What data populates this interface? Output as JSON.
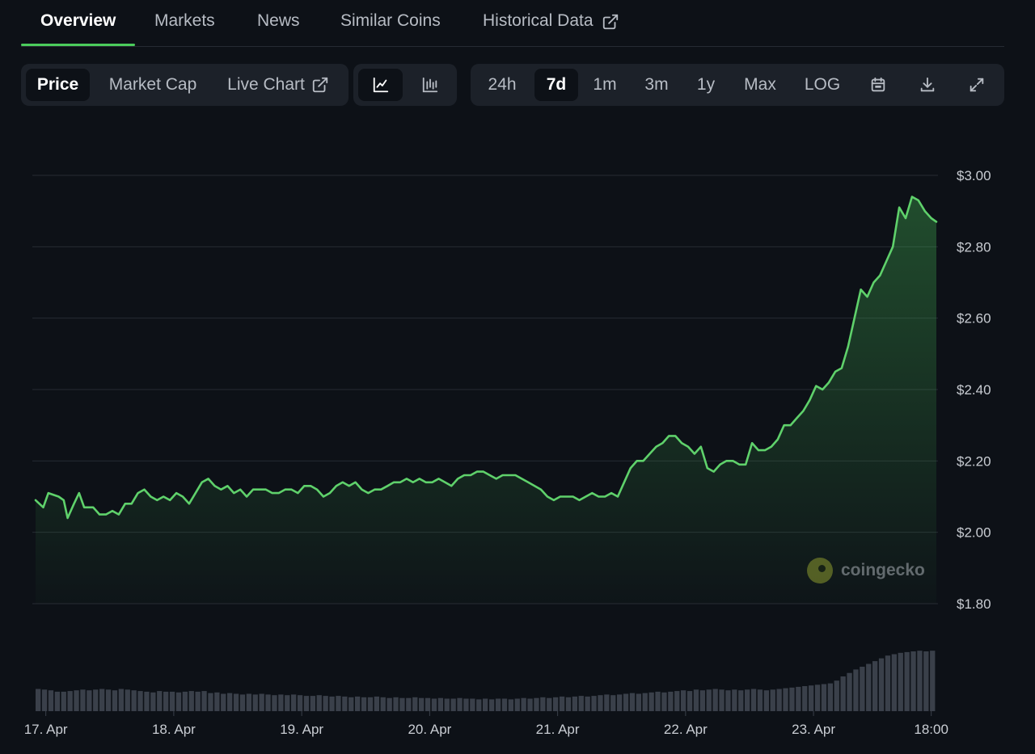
{
  "nav": {
    "tabs": [
      {
        "label": "Overview"
      },
      {
        "label": "Markets"
      },
      {
        "label": "News"
      },
      {
        "label": "Similar Coins"
      },
      {
        "label": "Historical Data"
      }
    ]
  },
  "toolbar": {
    "metrics": [
      {
        "label": "Price"
      },
      {
        "label": "Market Cap"
      },
      {
        "label": "Live Chart"
      }
    ],
    "chart_types": [
      {
        "icon": "line-chart-icon"
      },
      {
        "icon": "candlestick-chart-icon"
      }
    ],
    "ranges": [
      {
        "label": "24h"
      },
      {
        "label": "7d"
      },
      {
        "label": "1m"
      },
      {
        "label": "3m"
      },
      {
        "label": "1y"
      },
      {
        "label": "Max"
      },
      {
        "label": "LOG"
      }
    ],
    "actions": [
      {
        "icon": "calendar-icon"
      },
      {
        "icon": "download-icon"
      },
      {
        "icon": "fullscreen-icon"
      }
    ]
  },
  "watermark": {
    "text": "coingecko"
  },
  "colors": {
    "accent": "#4bcc5c",
    "line": "#5fd16b",
    "background": "#0d1117",
    "volume_bar": "#3a404a"
  },
  "chart_data": {
    "type": "area",
    "ylim": [
      1.8,
      3.0
    ],
    "y_ticks": [
      "$3.00",
      "$2.80",
      "$2.60",
      "$2.40",
      "$2.20",
      "$2.00",
      "$1.80"
    ],
    "x_ticks": [
      "17. Apr",
      "18. Apr",
      "19. Apr",
      "20. Apr",
      "21. Apr",
      "22. Apr",
      "23. Apr",
      "18:00"
    ],
    "x_range": [
      0,
      7.04
    ],
    "x_tick_positions": [
      0.08,
      1.08,
      2.08,
      3.08,
      4.08,
      5.08,
      6.08,
      7.0
    ],
    "price": [
      [
        0.0,
        2.09
      ],
      [
        0.06,
        2.07
      ],
      [
        0.1,
        2.11
      ],
      [
        0.18,
        2.1
      ],
      [
        0.22,
        2.09
      ],
      [
        0.25,
        2.04
      ],
      [
        0.3,
        2.08
      ],
      [
        0.34,
        2.11
      ],
      [
        0.38,
        2.07
      ],
      [
        0.45,
        2.07
      ],
      [
        0.5,
        2.05
      ],
      [
        0.55,
        2.05
      ],
      [
        0.6,
        2.06
      ],
      [
        0.65,
        2.05
      ],
      [
        0.7,
        2.08
      ],
      [
        0.75,
        2.08
      ],
      [
        0.8,
        2.11
      ],
      [
        0.85,
        2.12
      ],
      [
        0.9,
        2.1
      ],
      [
        0.95,
        2.09
      ],
      [
        1.0,
        2.1
      ],
      [
        1.05,
        2.09
      ],
      [
        1.1,
        2.11
      ],
      [
        1.15,
        2.1
      ],
      [
        1.2,
        2.08
      ],
      [
        1.25,
        2.11
      ],
      [
        1.3,
        2.14
      ],
      [
        1.35,
        2.15
      ],
      [
        1.4,
        2.13
      ],
      [
        1.45,
        2.12
      ],
      [
        1.5,
        2.13
      ],
      [
        1.55,
        2.11
      ],
      [
        1.6,
        2.12
      ],
      [
        1.65,
        2.1
      ],
      [
        1.7,
        2.12
      ],
      [
        1.75,
        2.12
      ],
      [
        1.8,
        2.12
      ],
      [
        1.85,
        2.11
      ],
      [
        1.9,
        2.11
      ],
      [
        1.95,
        2.12
      ],
      [
        2.0,
        2.12
      ],
      [
        2.05,
        2.11
      ],
      [
        2.1,
        2.13
      ],
      [
        2.15,
        2.13
      ],
      [
        2.2,
        2.12
      ],
      [
        2.25,
        2.1
      ],
      [
        2.3,
        2.11
      ],
      [
        2.35,
        2.13
      ],
      [
        2.4,
        2.14
      ],
      [
        2.45,
        2.13
      ],
      [
        2.5,
        2.14
      ],
      [
        2.55,
        2.12
      ],
      [
        2.6,
        2.11
      ],
      [
        2.65,
        2.12
      ],
      [
        2.7,
        2.12
      ],
      [
        2.75,
        2.13
      ],
      [
        2.8,
        2.14
      ],
      [
        2.85,
        2.14
      ],
      [
        2.9,
        2.15
      ],
      [
        2.95,
        2.14
      ],
      [
        3.0,
        2.15
      ],
      [
        3.05,
        2.14
      ],
      [
        3.1,
        2.14
      ],
      [
        3.15,
        2.15
      ],
      [
        3.2,
        2.14
      ],
      [
        3.25,
        2.13
      ],
      [
        3.3,
        2.15
      ],
      [
        3.35,
        2.16
      ],
      [
        3.4,
        2.16
      ],
      [
        3.45,
        2.17
      ],
      [
        3.5,
        2.17
      ],
      [
        3.55,
        2.16
      ],
      [
        3.6,
        2.15
      ],
      [
        3.65,
        2.16
      ],
      [
        3.7,
        2.16
      ],
      [
        3.75,
        2.16
      ],
      [
        3.8,
        2.15
      ],
      [
        3.85,
        2.14
      ],
      [
        3.9,
        2.13
      ],
      [
        3.95,
        2.12
      ],
      [
        4.0,
        2.1
      ],
      [
        4.05,
        2.09
      ],
      [
        4.1,
        2.1
      ],
      [
        4.15,
        2.1
      ],
      [
        4.2,
        2.1
      ],
      [
        4.25,
        2.09
      ],
      [
        4.3,
        2.1
      ],
      [
        4.35,
        2.11
      ],
      [
        4.4,
        2.1
      ],
      [
        4.45,
        2.1
      ],
      [
        4.5,
        2.11
      ],
      [
        4.55,
        2.1
      ],
      [
        4.6,
        2.14
      ],
      [
        4.65,
        2.18
      ],
      [
        4.7,
        2.2
      ],
      [
        4.75,
        2.2
      ],
      [
        4.8,
        2.22
      ],
      [
        4.85,
        2.24
      ],
      [
        4.9,
        2.25
      ],
      [
        4.95,
        2.27
      ],
      [
        5.0,
        2.27
      ],
      [
        5.05,
        2.25
      ],
      [
        5.1,
        2.24
      ],
      [
        5.15,
        2.22
      ],
      [
        5.2,
        2.24
      ],
      [
        5.25,
        2.18
      ],
      [
        5.3,
        2.17
      ],
      [
        5.35,
        2.19
      ],
      [
        5.4,
        2.2
      ],
      [
        5.45,
        2.2
      ],
      [
        5.5,
        2.19
      ],
      [
        5.55,
        2.19
      ],
      [
        5.6,
        2.25
      ],
      [
        5.65,
        2.23
      ],
      [
        5.7,
        2.23
      ],
      [
        5.75,
        2.24
      ],
      [
        5.8,
        2.26
      ],
      [
        5.85,
        2.3
      ],
      [
        5.9,
        2.3
      ],
      [
        5.95,
        2.32
      ],
      [
        6.0,
        2.34
      ],
      [
        6.05,
        2.37
      ],
      [
        6.1,
        2.41
      ],
      [
        6.15,
        2.4
      ],
      [
        6.2,
        2.42
      ],
      [
        6.25,
        2.45
      ],
      [
        6.3,
        2.46
      ],
      [
        6.35,
        2.52
      ],
      [
        6.4,
        2.6
      ],
      [
        6.45,
        2.68
      ],
      [
        6.5,
        2.66
      ],
      [
        6.55,
        2.7
      ],
      [
        6.6,
        2.72
      ],
      [
        6.65,
        2.76
      ],
      [
        6.7,
        2.8
      ],
      [
        6.75,
        2.91
      ],
      [
        6.8,
        2.88
      ],
      [
        6.85,
        2.94
      ],
      [
        6.9,
        2.93
      ],
      [
        6.95,
        2.9
      ],
      [
        7.0,
        2.88
      ],
      [
        7.04,
        2.87
      ]
    ],
    "volume_scale": 1.0,
    "volume": [
      0.32,
      0.31,
      0.3,
      0.28,
      0.28,
      0.29,
      0.3,
      0.31,
      0.3,
      0.31,
      0.32,
      0.31,
      0.3,
      0.32,
      0.31,
      0.3,
      0.29,
      0.28,
      0.27,
      0.29,
      0.28,
      0.28,
      0.27,
      0.28,
      0.29,
      0.28,
      0.29,
      0.26,
      0.27,
      0.25,
      0.26,
      0.25,
      0.24,
      0.25,
      0.24,
      0.25,
      0.24,
      0.23,
      0.24,
      0.23,
      0.24,
      0.23,
      0.22,
      0.22,
      0.23,
      0.22,
      0.21,
      0.22,
      0.21,
      0.2,
      0.21,
      0.2,
      0.2,
      0.21,
      0.2,
      0.19,
      0.2,
      0.19,
      0.19,
      0.2,
      0.19,
      0.19,
      0.18,
      0.19,
      0.18,
      0.18,
      0.19,
      0.18,
      0.18,
      0.17,
      0.18,
      0.17,
      0.18,
      0.18,
      0.17,
      0.18,
      0.19,
      0.18,
      0.19,
      0.2,
      0.19,
      0.2,
      0.21,
      0.2,
      0.21,
      0.22,
      0.21,
      0.22,
      0.23,
      0.24,
      0.23,
      0.24,
      0.25,
      0.26,
      0.25,
      0.26,
      0.27,
      0.28,
      0.27,
      0.28,
      0.29,
      0.3,
      0.29,
      0.31,
      0.3,
      0.31,
      0.32,
      0.31,
      0.3,
      0.31,
      0.3,
      0.31,
      0.32,
      0.31,
      0.3,
      0.31,
      0.32,
      0.33,
      0.34,
      0.35,
      0.36,
      0.37,
      0.38,
      0.39,
      0.4,
      0.44,
      0.5,
      0.55,
      0.6,
      0.64,
      0.68,
      0.72,
      0.76,
      0.8,
      0.82,
      0.84,
      0.85,
      0.86,
      0.87,
      0.86,
      0.87
    ]
  }
}
